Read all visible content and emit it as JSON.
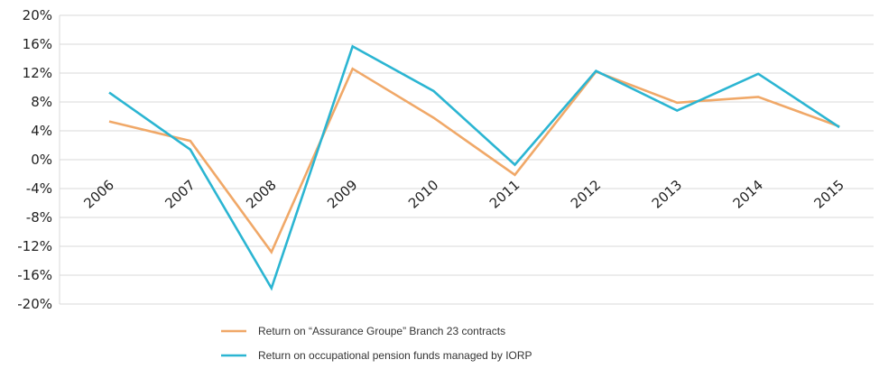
{
  "chart_data": {
    "type": "line",
    "title": "",
    "xlabel": "",
    "ylabel": "",
    "x": [
      "2006",
      "2007",
      "2008",
      "2009",
      "2010",
      "2011",
      "2012",
      "2013",
      "2014",
      "2015"
    ],
    "ylim": [
      -20,
      20
    ],
    "y_ticks": [
      "20%",
      "16%",
      "12%",
      "8%",
      "4%",
      "0%",
      "-4%",
      "-8%",
      "-12%",
      "-16%",
      "-20%"
    ],
    "grid": "horizontal",
    "legend_position": "bottom",
    "series": [
      {
        "name": "Return on “Assurance Groupe” Branch 23 contracts",
        "color": "#F0A868",
        "values": [
          5.3,
          2.6,
          -12.8,
          12.6,
          5.8,
          -2.1,
          12.2,
          7.9,
          8.7,
          4.6
        ]
      },
      {
        "name": "Return on occupational pension funds managed by IORP",
        "color": "#2BB5D2",
        "values": [
          9.3,
          1.4,
          -17.8,
          15.7,
          9.5,
          -0.7,
          12.3,
          6.8,
          11.9,
          4.5
        ]
      }
    ]
  }
}
